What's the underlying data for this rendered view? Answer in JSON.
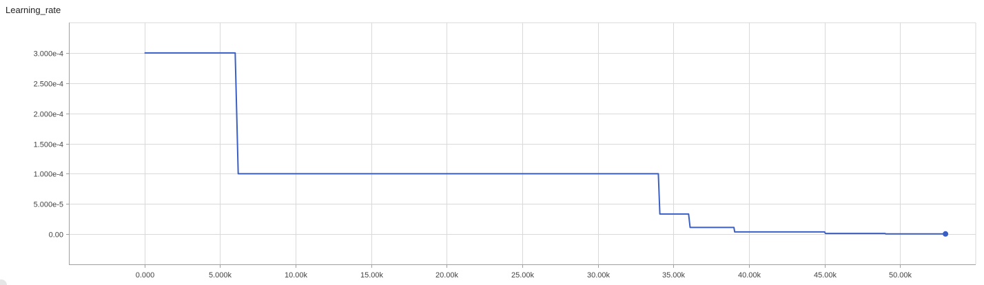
{
  "title": "Learning_rate",
  "chart_data": {
    "type": "line",
    "title": "Learning_rate",
    "xlabel": "",
    "ylabel": "",
    "xlim": [
      -5000,
      55000
    ],
    "ylim": [
      -5e-05,
      0.00035
    ],
    "x_ticks": [
      0,
      5000,
      10000,
      15000,
      20000,
      25000,
      30000,
      35000,
      40000,
      45000,
      50000
    ],
    "x_tick_labels": [
      "0.000",
      "5.000k",
      "10.00k",
      "15.00k",
      "20.00k",
      "25.00k",
      "30.00k",
      "35.00k",
      "40.00k",
      "45.00k",
      "50.00k"
    ],
    "y_ticks": [
      0,
      5e-05,
      0.0001,
      0.00015,
      0.0002,
      0.00025,
      0.0003
    ],
    "y_tick_labels": [
      "0.00",
      "5.000e-5",
      "1.000e-4",
      "1.500e-4",
      "2.000e-4",
      "2.500e-4",
      "3.000e-4"
    ],
    "grid": true,
    "legend": "none",
    "series": [
      {
        "color": "#3a5fc4",
        "x": [
          0,
          6000,
          6200,
          34000,
          34100,
          36000,
          36100,
          39000,
          39050,
          45000,
          45050,
          49000,
          49050,
          53000
        ],
        "y": [
          0.0003,
          0.0003,
          0.0001,
          0.0001,
          3.33e-05,
          3.33e-05,
          1.11e-05,
          1.11e-05,
          3.7e-06,
          3.7e-06,
          1.2e-06,
          1.2e-06,
          4e-07,
          4e-07
        ]
      }
    ]
  }
}
